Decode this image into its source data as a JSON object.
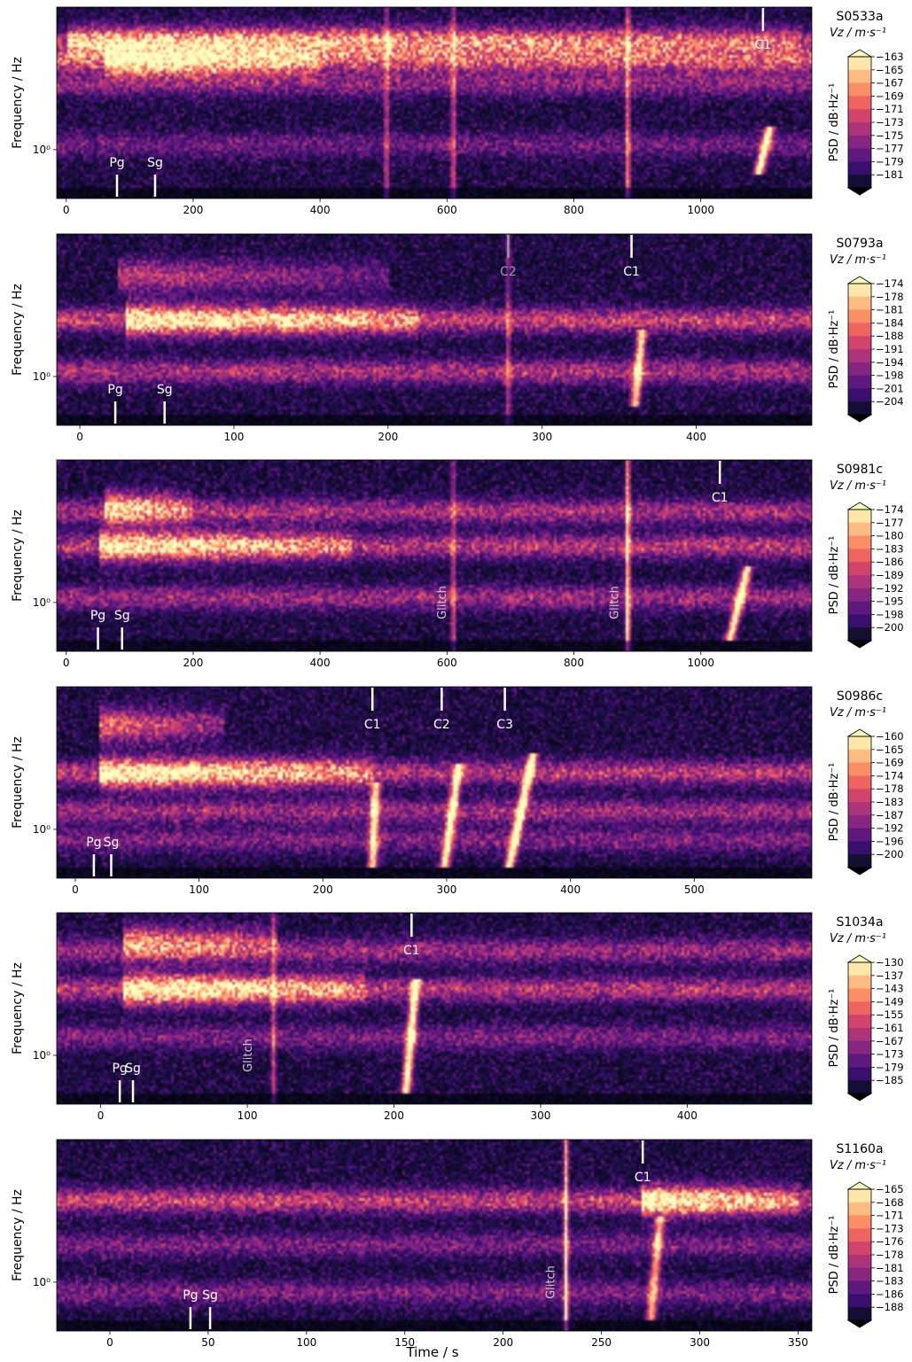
{
  "figure": {
    "xlabel": "Time / s",
    "ylabel": "Frequency / Hz",
    "cbar_label": "PSD / dB·Hz⁻¹"
  },
  "palette": {
    "colormap": [
      "#000004",
      "#140e36",
      "#3b0f70",
      "#641a80",
      "#8c2981",
      "#b73779",
      "#de4968",
      "#f7705c",
      "#fe9f6d",
      "#fecf92",
      "#fcfdbf"
    ]
  },
  "chart_data": [
    {
      "type": "heatmap",
      "event": "S0533a",
      "component": "Vz / m·s⁻¹",
      "xlim": [
        -15,
        1175
      ],
      "xticks": [
        0,
        200,
        400,
        600,
        800,
        1000
      ],
      "ytick_label": "10⁰",
      "colorbar_levels": [
        -163,
        -165,
        -167,
        -169,
        -171,
        -173,
        -175,
        -177,
        -179,
        -181
      ],
      "bands": [
        {
          "f": 0.82,
          "i": 0.45
        },
        {
          "f": 0.72,
          "i": 0.6
        },
        {
          "f": 0.6,
          "i": 0.35
        },
        {
          "f": 0.28,
          "i": 0.25
        }
      ],
      "bright_spans": [
        {
          "t0": 60,
          "t1": 400,
          "f": 0.72,
          "i": 0.8
        },
        {
          "t0": 0,
          "t1": 1160,
          "f": 0.82,
          "i": 0.6
        }
      ],
      "chirps": [
        {
          "t0": 1090,
          "t1": 1110,
          "f0": 0.12,
          "f1": 0.38,
          "i": 0.95
        }
      ],
      "spikes": [
        {
          "t": 505,
          "i": 0.5
        },
        {
          "t": 610,
          "i": 0.55
        },
        {
          "t": 885,
          "i": 0.7
        }
      ],
      "markers": [
        {
          "label": "Pg",
          "t": 80,
          "pos": "bottom",
          "color": "#ffffff"
        },
        {
          "label": "Sg",
          "t": 140,
          "pos": "bottom",
          "color": "#ffffff"
        },
        {
          "label": "C1",
          "t": 1098,
          "pos": "top",
          "color": "#ffffff"
        }
      ],
      "glitch_labels": []
    },
    {
      "type": "heatmap",
      "event": "S0793a",
      "component": "Vz / m·s⁻¹",
      "xlim": [
        -15,
        475
      ],
      "xticks": [
        0,
        100,
        200,
        300,
        400
      ],
      "ytick_label": "10⁰",
      "colorbar_levels": [
        -174,
        -178,
        -181,
        -184,
        -188,
        -191,
        -194,
        -198,
        -201,
        -204
      ],
      "bands": [
        {
          "f": 0.55,
          "i": 0.55
        },
        {
          "f": 0.28,
          "i": 0.45
        }
      ],
      "bright_spans": [
        {
          "t0": 30,
          "t1": 220,
          "f": 0.55,
          "i": 0.85
        },
        {
          "t0": 25,
          "t1": 200,
          "f": 0.78,
          "i": 0.5
        }
      ],
      "chirps": [
        {
          "t0": 360,
          "t1": 365,
          "f0": 0.1,
          "f1": 0.5,
          "i": 0.8
        }
      ],
      "spikes": [
        {
          "t": 278,
          "i": 0.45
        }
      ],
      "markers": [
        {
          "label": "Pg",
          "t": 23,
          "pos": "bottom",
          "color": "#ffffff"
        },
        {
          "label": "Sg",
          "t": 55,
          "pos": "bottom",
          "color": "#ffffff"
        },
        {
          "label": "C2",
          "t": 278,
          "pos": "top",
          "color": "#9a9a9a"
        },
        {
          "label": "C1",
          "t": 358,
          "pos": "top",
          "color": "#ffffff"
        }
      ],
      "glitch_labels": []
    },
    {
      "type": "heatmap",
      "event": "S0981c",
      "component": "Vz / m·s⁻¹",
      "xlim": [
        -15,
        1175
      ],
      "xticks": [
        0,
        200,
        400,
        600,
        800,
        1000
      ],
      "ytick_label": "10⁰",
      "colorbar_levels": [
        -174,
        -177,
        -180,
        -183,
        -186,
        -189,
        -192,
        -195,
        -198,
        -200
      ],
      "bands": [
        {
          "f": 0.73,
          "i": 0.45
        },
        {
          "f": 0.55,
          "i": 0.5
        },
        {
          "f": 0.28,
          "i": 0.4
        }
      ],
      "bright_spans": [
        {
          "t0": 60,
          "t1": 200,
          "f": 0.75,
          "i": 0.85
        },
        {
          "t0": 50,
          "t1": 450,
          "f": 0.55,
          "i": 0.8
        }
      ],
      "chirps": [
        {
          "t0": 1045,
          "t1": 1075,
          "f0": 0.05,
          "f1": 0.45,
          "i": 0.9
        }
      ],
      "spikes": [
        {
          "t": 885,
          "i": 1.0
        },
        {
          "t": 610,
          "i": 0.5
        }
      ],
      "markers": [
        {
          "label": "Pg",
          "t": 50,
          "pos": "bottom",
          "color": "#ffffff"
        },
        {
          "label": "Sg",
          "t": 88,
          "pos": "bottom",
          "color": "#ffffff"
        },
        {
          "label": "C1",
          "t": 1030,
          "pos": "top",
          "color": "#ffffff"
        }
      ],
      "glitch_labels": [
        {
          "label": "Glitch",
          "t": 598
        },
        {
          "label": "Glitch",
          "t": 870
        }
      ]
    },
    {
      "type": "heatmap",
      "event": "S0986c",
      "component": "Vz / m·s⁻¹",
      "xlim": [
        -15,
        595
      ],
      "xticks": [
        0,
        100,
        200,
        300,
        400,
        500
      ],
      "ytick_label": "10⁰",
      "colorbar_levels": [
        -160,
        -165,
        -169,
        -174,
        -178,
        -183,
        -187,
        -192,
        -196,
        -200
      ],
      "bands": [
        {
          "f": 0.55,
          "i": 0.5
        },
        {
          "f": 0.35,
          "i": 0.4
        },
        {
          "f": 0.2,
          "i": 0.3
        }
      ],
      "bright_spans": [
        {
          "t0": 20,
          "t1": 240,
          "f": 0.55,
          "i": 0.9
        },
        {
          "t0": 20,
          "t1": 120,
          "f": 0.8,
          "i": 0.75
        }
      ],
      "chirps": [
        {
          "t0": 240,
          "t1": 243,
          "f0": 0.05,
          "f1": 0.5,
          "i": 0.8
        },
        {
          "t0": 298,
          "t1": 310,
          "f0": 0.05,
          "f1": 0.6,
          "i": 0.9
        },
        {
          "t0": 350,
          "t1": 370,
          "f0": 0.05,
          "f1": 0.65,
          "i": 1.0
        }
      ],
      "spikes": [],
      "markers": [
        {
          "label": "Pg",
          "t": 15,
          "pos": "bottom",
          "color": "#ffffff"
        },
        {
          "label": "Sg",
          "t": 29,
          "pos": "bottom",
          "color": "#ffffff"
        },
        {
          "label": "C1",
          "t": 240,
          "pos": "top",
          "color": "#ffffff"
        },
        {
          "label": "C2",
          "t": 296,
          "pos": "top",
          "color": "#ffffff"
        },
        {
          "label": "C3",
          "t": 347,
          "pos": "top",
          "color": "#ffffff"
        }
      ],
      "glitch_labels": []
    },
    {
      "type": "heatmap",
      "event": "S1034a",
      "component": "Vz / m·s⁻¹",
      "xlim": [
        -30,
        485
      ],
      "xticks": [
        0,
        100,
        200,
        300,
        400
      ],
      "ytick_label": "10⁰",
      "colorbar_levels": [
        -130,
        -137,
        -143,
        -149,
        -155,
        -161,
        -167,
        -173,
        -179,
        -185
      ],
      "bands": [
        {
          "f": 0.6,
          "i": 0.5
        },
        {
          "f": 0.8,
          "i": 0.4
        },
        {
          "f": 0.35,
          "i": 0.3
        }
      ],
      "bright_spans": [
        {
          "t0": 15,
          "t1": 180,
          "f": 0.6,
          "i": 0.95
        },
        {
          "t0": 15,
          "t1": 120,
          "f": 0.85,
          "i": 0.75
        }
      ],
      "chirps": [
        {
          "t0": 208,
          "t1": 215,
          "f0": 0.05,
          "f1": 0.65,
          "i": 0.95
        }
      ],
      "spikes": [
        {
          "t": 118,
          "i": 0.5
        }
      ],
      "markers": [
        {
          "label": "Pg",
          "t": 13,
          "pos": "bottom",
          "color": "#ffffff"
        },
        {
          "label": "Sg",
          "t": 22,
          "pos": "bottom",
          "color": "#ffffff"
        },
        {
          "label": "C1",
          "t": 212,
          "pos": "top",
          "color": "#ffffff"
        }
      ],
      "glitch_labels": [
        {
          "label": "Glitch",
          "t": 103
        }
      ]
    },
    {
      "type": "heatmap",
      "event": "S1160a",
      "component": "Vz / m·s⁻¹",
      "xlim": [
        -27,
        357
      ],
      "xticks": [
        0,
        50,
        100,
        150,
        200,
        250,
        300,
        350
      ],
      "ytick_label": "10⁰",
      "colorbar_levels": [
        -165,
        -168,
        -171,
        -173,
        -176,
        -178,
        -181,
        -183,
        -186,
        -188
      ],
      "bands": [
        {
          "f": 0.68,
          "i": 0.55
        },
        {
          "f": 0.45,
          "i": 0.3
        },
        {
          "f": 0.2,
          "i": 0.3
        }
      ],
      "bright_spans": [
        {
          "t0": 270,
          "t1": 350,
          "f": 0.68,
          "i": 0.85
        }
      ],
      "chirps": [
        {
          "t0": 275,
          "t1": 280,
          "f0": 0.05,
          "f1": 0.6,
          "i": 0.7
        }
      ],
      "spikes": [
        {
          "t": 232,
          "i": 1.0
        }
      ],
      "markers": [
        {
          "label": "Pg",
          "t": 41,
          "pos": "bottom",
          "color": "#ffffff"
        },
        {
          "label": "Sg",
          "t": 51,
          "pos": "bottom",
          "color": "#ffffff"
        },
        {
          "label": "C1",
          "t": 271,
          "pos": "top",
          "color": "#ffffff"
        }
      ],
      "glitch_labels": [
        {
          "label": "Glitch",
          "t": 226
        }
      ]
    }
  ]
}
